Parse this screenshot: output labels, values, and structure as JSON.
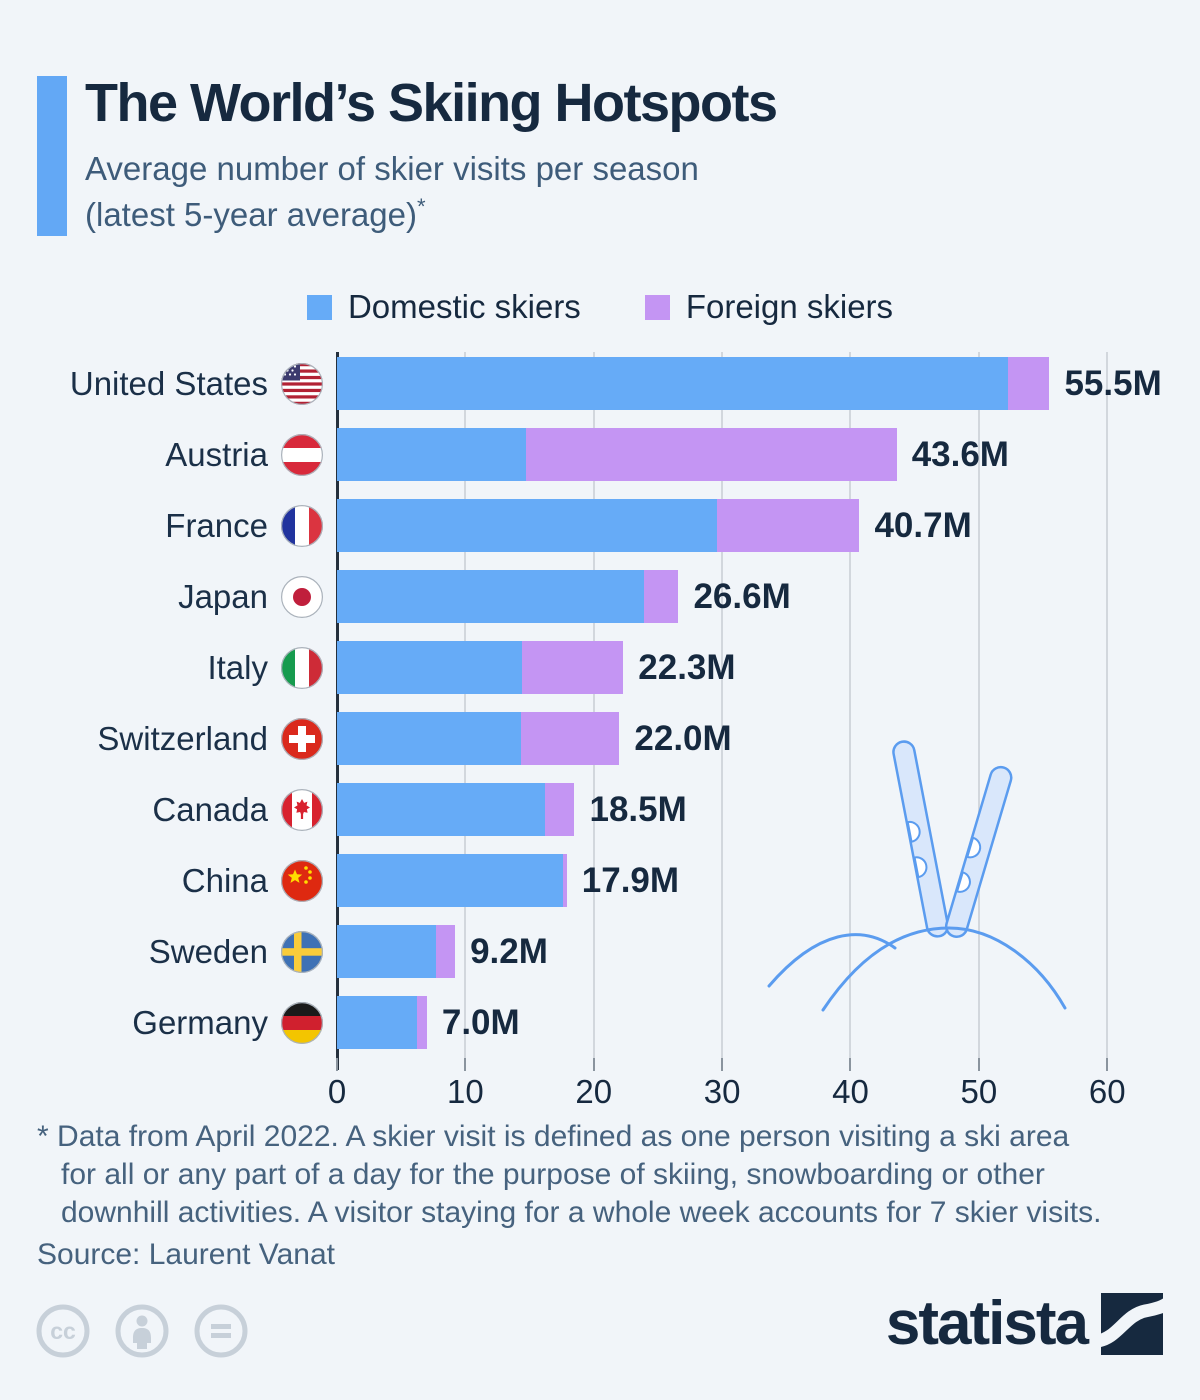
{
  "header": {
    "title": "The World’s Skiing Hotspots",
    "subtitle_line1": "Average number of skier visits per season",
    "subtitle_line2": "(latest 5-year average)",
    "footnote_marker": "*"
  },
  "legend": {
    "items": [
      {
        "label": "Domestic skiers",
        "color": "#66ABF7"
      },
      {
        "label": "Foreign skiers",
        "color": "#C495F3"
      }
    ]
  },
  "chart_data": {
    "type": "bar",
    "orientation": "horizontal",
    "title": "Average number of skier visits per season (latest 5-year average)",
    "unit": "million skier visits",
    "categories": [
      "United States",
      "Austria",
      "France",
      "Japan",
      "Italy",
      "Switzerland",
      "Canada",
      "China",
      "Sweden",
      "Germany"
    ],
    "flags": [
      "us",
      "at",
      "fr",
      "jp",
      "it",
      "ch",
      "ca",
      "cn",
      "se",
      "de"
    ],
    "series": [
      {
        "name": "Domestic skiers",
        "color": "#66ABF7",
        "values": [
          52.3,
          14.7,
          29.6,
          23.9,
          14.4,
          14.3,
          16.2,
          17.6,
          7.7,
          6.2
        ]
      },
      {
        "name": "Foreign skiers",
        "color": "#C495F3",
        "values": [
          3.2,
          28.9,
          11.1,
          2.7,
          7.9,
          7.7,
          2.3,
          0.3,
          1.5,
          0.8
        ]
      }
    ],
    "totals": [
      55.5,
      43.6,
      40.7,
      26.6,
      22.3,
      22.0,
      18.5,
      17.9,
      9.2,
      7.0
    ],
    "total_labels": [
      "55.5M",
      "43.6M",
      "40.7M",
      "26.6M",
      "22.3M",
      "22.0M",
      "18.5M",
      "17.9M",
      "9.2M",
      "7.0M"
    ],
    "x_ticks": [
      "0",
      "10",
      "20",
      "30",
      "40",
      "50",
      "60"
    ],
    "xlim": [
      0,
      60
    ],
    "grid": "vertical",
    "legend_position": "top"
  },
  "footnote": {
    "marker": "*",
    "lines": [
      "Data from April 2022. A skier visit is defined as one person visiting a ski area",
      "for all or any part of a day for the purpose of skiing, snowboarding or other",
      "downhill activities. A visitor staying for a whole week accounts for 7 skier visits."
    ]
  },
  "source": "Source: Laurent Vanat",
  "footer": {
    "brand": "statista",
    "license_icons": [
      "cc",
      "by",
      "nd"
    ]
  },
  "colors": {
    "background": "#F1F5F9",
    "accent_bar": "#63A8F5",
    "title_text": "#16293F",
    "subtitle_text": "#3E5C7A",
    "domestic_bar": "#66ABF7",
    "foreign_bar": "#C495F3",
    "gridline": "#D2D7DD",
    "axis_line": "#25303D",
    "license_icons": "#C7D0D9"
  }
}
